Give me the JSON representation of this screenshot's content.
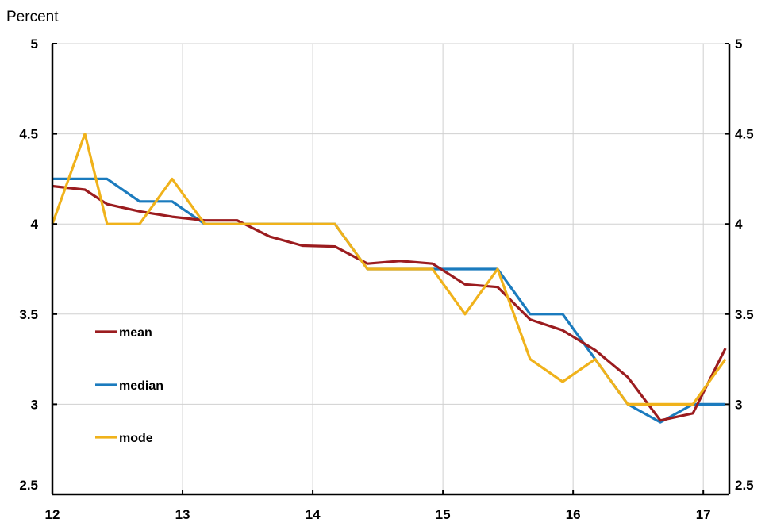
{
  "chart_data": {
    "type": "line",
    "ylabel": "Percent",
    "ylim": [
      2.5,
      5
    ],
    "xlim": [
      12,
      17.2
    ],
    "y_ticks": [
      "2.5",
      "3",
      "3.5",
      "4",
      "4.5",
      "5"
    ],
    "x_ticks": [
      "12",
      "13",
      "14",
      "15",
      "16",
      "17"
    ],
    "grid": true,
    "dual_y_axis": true,
    "legend_position": "lower-left",
    "series": [
      {
        "name": "mean",
        "color": "#9B1C1F",
        "x": [
          12.0,
          12.25,
          12.42,
          12.67,
          12.92,
          13.17,
          13.42,
          13.67,
          13.92,
          14.17,
          14.42,
          14.67,
          14.92,
          15.17,
          15.42,
          15.67,
          15.92,
          16.17,
          16.42,
          16.67,
          16.92,
          17.17
        ],
        "values": [
          4.21,
          4.19,
          4.11,
          4.07,
          4.04,
          4.02,
          4.02,
          3.93,
          3.88,
          3.875,
          3.78,
          3.795,
          3.78,
          3.665,
          3.65,
          3.47,
          3.41,
          3.3,
          3.15,
          2.91,
          2.95,
          3.31
        ]
      },
      {
        "name": "median",
        "color": "#1B7BBE",
        "x": [
          12.0,
          12.25,
          12.42,
          12.67,
          12.92,
          13.17,
          13.42,
          13.67,
          13.92,
          14.17,
          14.42,
          14.67,
          14.92,
          15.17,
          15.42,
          15.67,
          15.92,
          16.17,
          16.42,
          16.67,
          16.92,
          17.17
        ],
        "values": [
          4.25,
          4.25,
          4.25,
          4.125,
          4.125,
          4.0,
          4.0,
          4.0,
          4.0,
          4.0,
          3.75,
          3.75,
          3.75,
          3.75,
          3.75,
          3.5,
          3.5,
          3.25,
          3.0,
          2.9,
          3.0,
          3.0
        ]
      },
      {
        "name": "mode",
        "color": "#F0B21B",
        "x": [
          12.0,
          12.25,
          12.42,
          12.67,
          12.92,
          13.17,
          13.42,
          13.67,
          13.92,
          14.17,
          14.42,
          14.67,
          14.92,
          15.17,
          15.42,
          15.67,
          15.92,
          16.17,
          16.42,
          16.67,
          16.92,
          17.17
        ],
        "values": [
          4.0,
          4.5,
          4.0,
          4.0,
          4.25,
          4.0,
          4.0,
          4.0,
          4.0,
          4.0,
          3.75,
          3.75,
          3.75,
          3.5,
          3.75,
          3.25,
          3.125,
          3.25,
          3.0,
          3.0,
          3.0,
          3.25
        ]
      }
    ]
  }
}
